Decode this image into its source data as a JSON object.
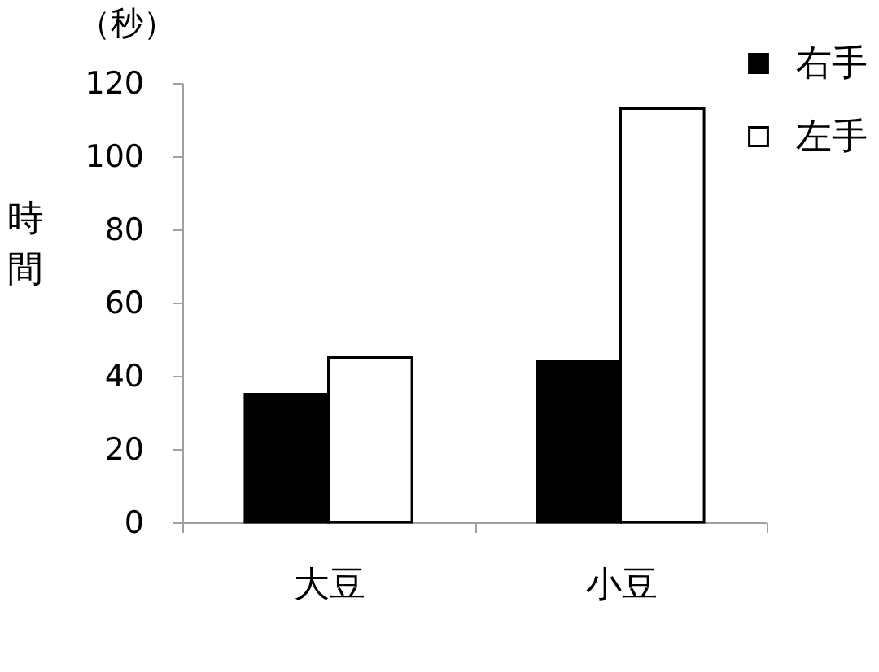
{
  "chart_data": {
    "type": "bar",
    "ylabel": "時間",
    "annotations": [
      "（秒）"
    ],
    "categories": [
      "大豆",
      "小豆"
    ],
    "series": [
      {
        "name": "右手",
        "color": "#000000",
        "values": [
          35,
          44
        ]
      },
      {
        "name": "左手",
        "color": "#ffffff",
        "values": [
          45,
          113
        ]
      }
    ],
    "ylim": [
      0,
      120
    ],
    "yticks": [
      0,
      20,
      40,
      60,
      80,
      100,
      120
    ],
    "legend": "top right"
  }
}
